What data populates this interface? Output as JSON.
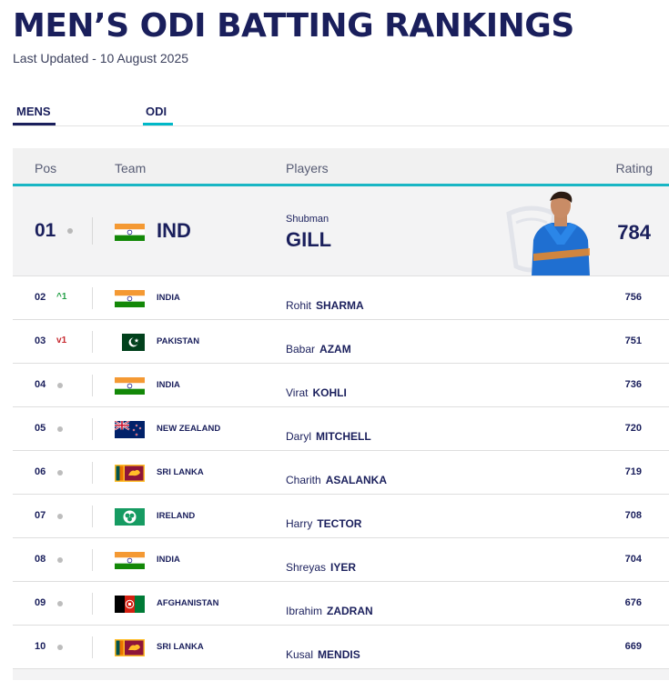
{
  "page": {
    "title": "MEN’S ODI BATTING RANKINGS",
    "last_updated": "Last Updated - 10 August 2025"
  },
  "tabs": [
    {
      "label": "MENS"
    },
    {
      "label": "ODI"
    }
  ],
  "table": {
    "headers": {
      "pos": "Pos",
      "team": "Team",
      "players": "Players",
      "rating": "Rating"
    },
    "top": {
      "pos": "01",
      "team": "IND",
      "first_name": "Shubman",
      "last_name": "GILL",
      "rating": "784"
    },
    "rows": [
      {
        "pos": "02",
        "movement": "up",
        "movement_value": "1",
        "team": "INDIA",
        "flag": "india",
        "first_name": "Rohit",
        "last_name": "SHARMA",
        "rating": "756"
      },
      {
        "pos": "03",
        "movement": "down",
        "movement_value": "1",
        "team": "PAKISTAN",
        "flag": "pakistan",
        "first_name": "Babar",
        "last_name": "AZAM",
        "rating": "751"
      },
      {
        "pos": "04",
        "movement": "none",
        "movement_value": "",
        "team": "INDIA",
        "flag": "india",
        "first_name": "Virat",
        "last_name": "KOHLI",
        "rating": "736"
      },
      {
        "pos": "05",
        "movement": "none",
        "movement_value": "",
        "team": "NEW ZEALAND",
        "flag": "new-zealand",
        "first_name": "Daryl",
        "last_name": "MITCHELL",
        "rating": "720"
      },
      {
        "pos": "06",
        "movement": "none",
        "movement_value": "",
        "team": "SRI LANKA",
        "flag": "sri-lanka",
        "first_name": "Charith",
        "last_name": "ASALANKA",
        "rating": "719"
      },
      {
        "pos": "07",
        "movement": "none",
        "movement_value": "",
        "team": "IRELAND",
        "flag": "ireland",
        "first_name": "Harry",
        "last_name": "TECTOR",
        "rating": "708"
      },
      {
        "pos": "08",
        "movement": "none",
        "movement_value": "",
        "team": "INDIA",
        "flag": "india",
        "first_name": "Shreyas",
        "last_name": "IYER",
        "rating": "704"
      },
      {
        "pos": "09",
        "movement": "none",
        "movement_value": "",
        "team": "AFGHANISTAN",
        "flag": "afghanistan",
        "first_name": "Ibrahim",
        "last_name": "ZADRAN",
        "rating": "676"
      },
      {
        "pos": "10",
        "movement": "none",
        "movement_value": "",
        "team": "SRI LANKA",
        "flag": "sri-lanka",
        "first_name": "Kusal",
        "last_name": "MENDIS",
        "rating": "669"
      }
    ]
  },
  "colors": {
    "navy": "#1a1f5c",
    "accent_teal": "#19b6c4",
    "up_green": "#24a047",
    "down_red": "#c7282e"
  }
}
